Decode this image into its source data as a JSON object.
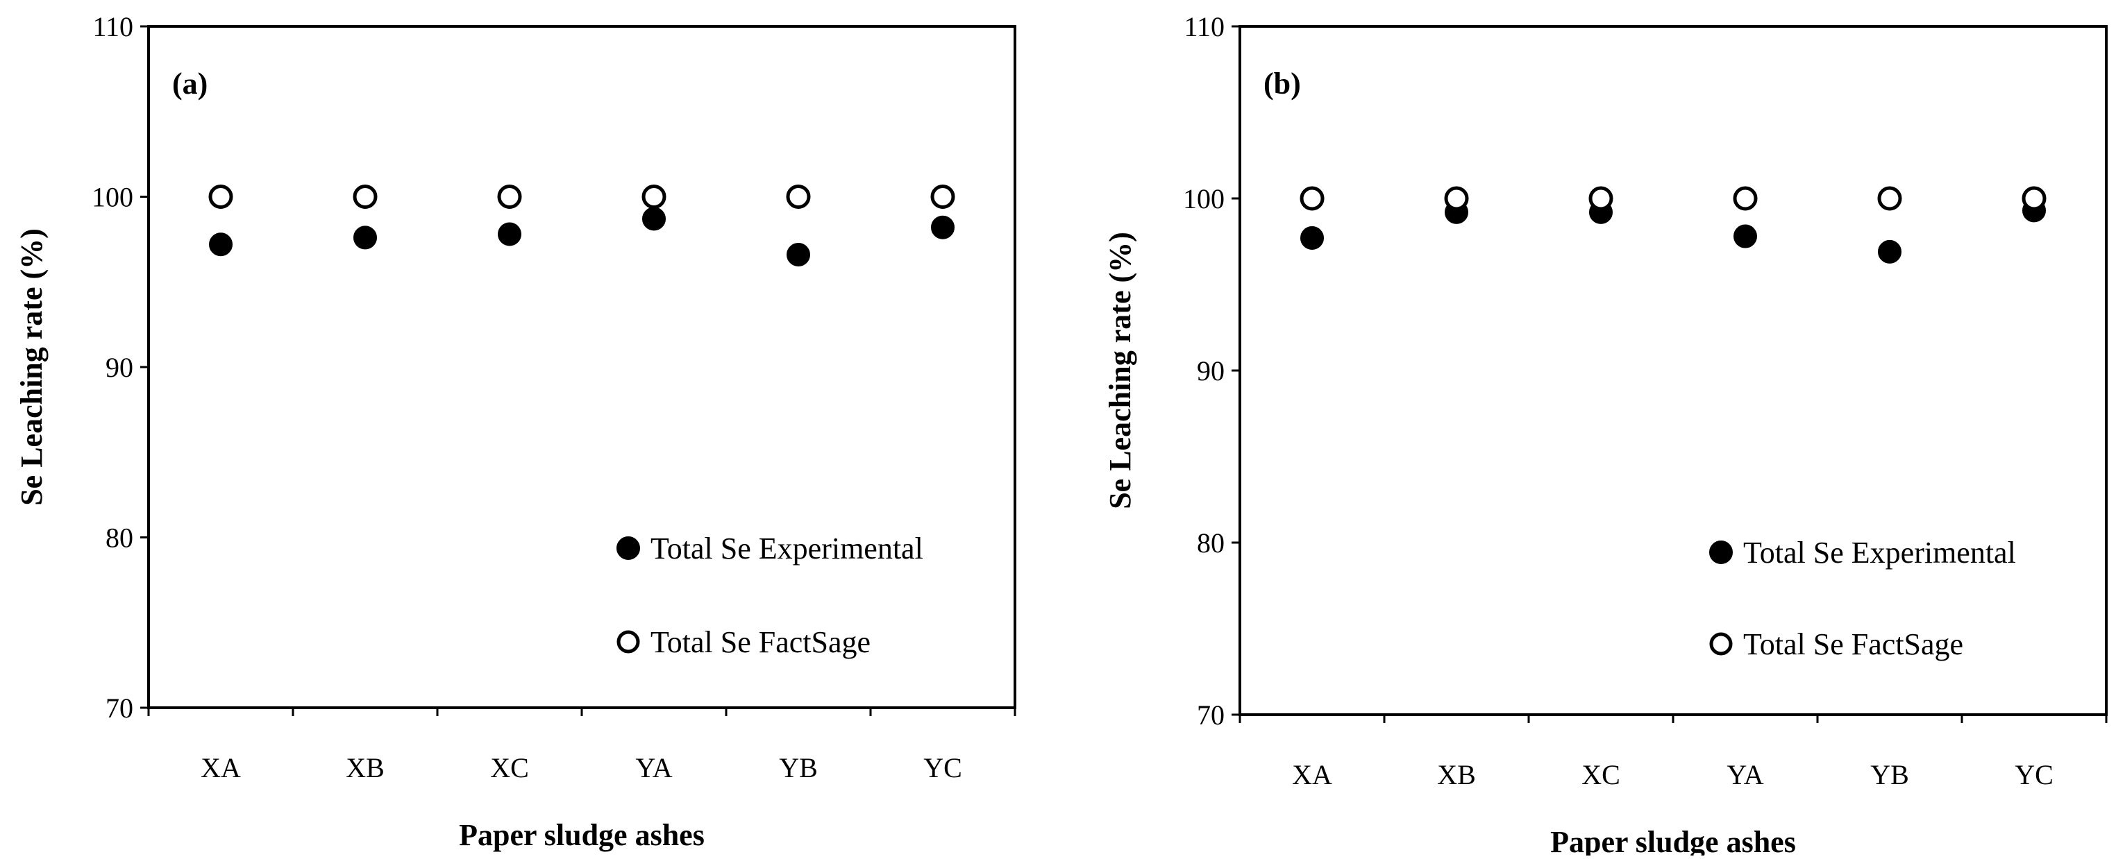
{
  "chart_data": [
    {
      "type": "scatter",
      "panel_label": "(a)",
      "categories": [
        "XA",
        "XB",
        "XC",
        "YA",
        "YB",
        "YC"
      ],
      "xlabel": "Paper sludge ashes",
      "ylabel": "Se Leaching rate (%)",
      "ylim": [
        70,
        110
      ],
      "yticks": [
        70,
        80,
        90,
        100,
        110
      ],
      "grid": false,
      "legend_position": "bottom-right",
      "series": [
        {
          "name": "Total Se Experimental",
          "marker": "filled-circle",
          "color": "#000000",
          "values": [
            97.2,
            97.6,
            97.8,
            98.7,
            96.6,
            98.2
          ]
        },
        {
          "name": "Total Se FactSage",
          "marker": "open-circle",
          "color": "#000000",
          "values": [
            100,
            100,
            100,
            100,
            100,
            100
          ]
        }
      ]
    },
    {
      "type": "scatter",
      "panel_label": "(b)",
      "categories": [
        "XA",
        "XB",
        "XC",
        "YA",
        "YB",
        "YC"
      ],
      "xlabel": "Paper sludge ashes",
      "ylabel": "Se Leaching rate (%)",
      "ylim": [
        70,
        110
      ],
      "yticks": [
        70,
        80,
        90,
        100,
        110
      ],
      "grid": false,
      "legend_position": "bottom-right",
      "series": [
        {
          "name": "Total Se Experimental",
          "marker": "filled-circle",
          "color": "#000000",
          "values": [
            97.7,
            99.2,
            99.2,
            97.8,
            96.9,
            99.3
          ]
        },
        {
          "name": "Total Se FactSage",
          "marker": "open-circle",
          "color": "#000000",
          "values": [
            100,
            100,
            100,
            100,
            100,
            100
          ]
        }
      ]
    }
  ]
}
